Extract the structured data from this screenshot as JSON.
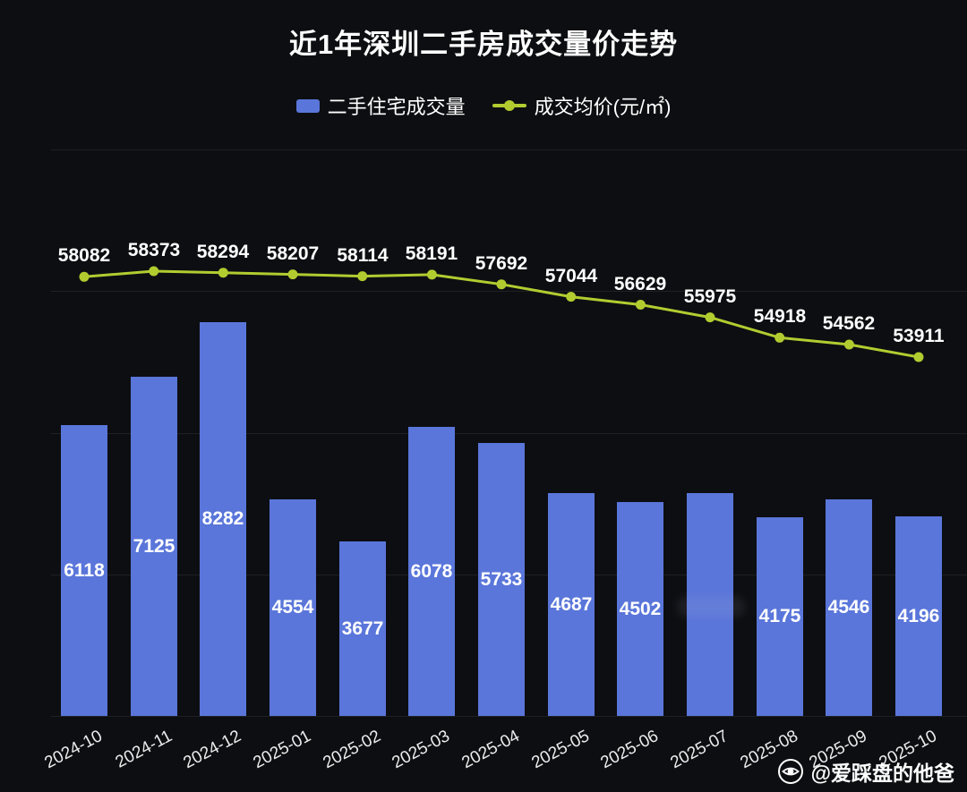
{
  "header": {
    "title": "近1年深圳二手房成交量价走势"
  },
  "legend": {
    "bar_label": "二手住宅成交量",
    "line_label": "成交均价(元/㎡)"
  },
  "watermark": {
    "handle": "@爱踩盘的他爸"
  },
  "colors": {
    "background": "#0d0e12",
    "bar": "#5a76da",
    "line": "#b2cc30",
    "text": "#ffffff",
    "grid": "rgba(255,255,255,0.08)"
  },
  "chart_data": {
    "type": "combo",
    "title": "近1年深圳二手房成交量价走势",
    "legend_position": "top",
    "grid": true,
    "categories": [
      "2024-10",
      "2024-11",
      "2024-12",
      "2025-01",
      "2025-02",
      "2025-03",
      "2025-04",
      "2025-05",
      "2025-06",
      "2025-07",
      "2025-08",
      "2025-09",
      "2025-10"
    ],
    "series": [
      {
        "name": "二手住宅成交量",
        "type": "bar",
        "values": [
          6118,
          7125,
          8282,
          4554,
          3677,
          6078,
          5733,
          4687,
          4502,
          4680,
          4175,
          4546,
          4196
        ],
        "labels": [
          "6118",
          "7125",
          "8282",
          "4554",
          "3677",
          "6078",
          "5733",
          "4687",
          "4502",
          "",
          "4175",
          "4546",
          "4196"
        ]
      },
      {
        "name": "成交均价(元/㎡)",
        "type": "line",
        "values": [
          58082,
          58373,
          58294,
          58207,
          58114,
          58191,
          57692,
          57044,
          56629,
          55975,
          54918,
          54562,
          53911
        ],
        "labels": [
          "58082",
          "58373",
          "58294",
          "58207",
          "58114",
          "58191",
          "57692",
          "57044",
          "56629",
          "55975",
          "54918",
          "54562",
          "53911"
        ]
      }
    ]
  }
}
